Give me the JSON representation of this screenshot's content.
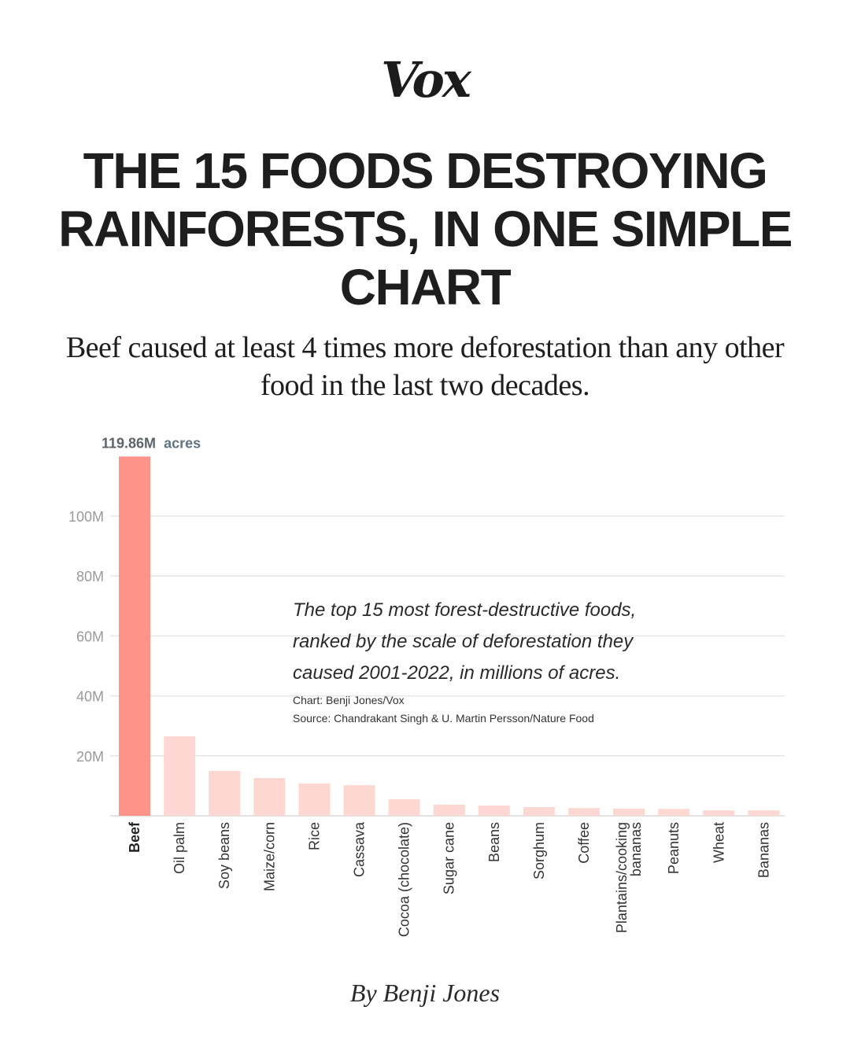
{
  "logo": "Vox",
  "title": "THE 15 FOODS DESTROYING RAINFORESTS, IN ONE SIMPLE CHART",
  "subtitle": "Beef caused at least 4 times more deforestation than any other food in the last two decades.",
  "byline": "By Benji Jones",
  "colors": {
    "highlight_bar": "#fd9389",
    "other_bar": "#fdd8d3",
    "grid": "#e6e6e6",
    "value_number": "#5d6468",
    "value_unit": "#5f7380"
  },
  "chart_data": {
    "type": "bar",
    "title": "The top 15 most forest-destructive foods, ranked by the scale of deforestation they caused 2001-2022, in millions of acres.",
    "annotation_lines": [
      "The top 15 most forest-destructive foods,",
      "ranked by the scale of deforestation they",
      "caused 2001-2022, in millions of acres."
    ],
    "credit": "Chart: Benji Jones/Vox",
    "source": "Source: Chandrakant Singh & U. Martin Persson/Nature Food",
    "xlabel": "",
    "ylabel": "",
    "ylim": [
      0,
      120
    ],
    "grid": true,
    "y_ticks": [
      20,
      40,
      60,
      80,
      100
    ],
    "y_tick_labels": [
      "20M",
      "40M",
      "60M",
      "80M",
      "100M"
    ],
    "categories": [
      "Beef",
      "Oil palm",
      "Soy beans",
      "Maize/corn",
      "Rice",
      "Cassava",
      "Cocoa (chocolate)",
      "Sugar cane",
      "Beans",
      "Sorghum",
      "Coffee",
      "Plantains/cooking bananas",
      "Peanuts",
      "Wheat",
      "Bananas"
    ],
    "category_label_lines": [
      [
        "Beef"
      ],
      [
        "Oil palm"
      ],
      [
        "Soy beans"
      ],
      [
        "Maize/corn"
      ],
      [
        "Rice"
      ],
      [
        "Cassava"
      ],
      [
        "Cocoa (chocolate)"
      ],
      [
        "Sugar cane"
      ],
      [
        "Beans"
      ],
      [
        "Sorghum"
      ],
      [
        "Coffee"
      ],
      [
        "Plantains/cooking",
        "bananas"
      ],
      [
        "Peanuts"
      ],
      [
        "Wheat"
      ],
      [
        "Bananas"
      ]
    ],
    "values": [
      119.86,
      26.5,
      15.0,
      12.6,
      10.8,
      10.2,
      5.5,
      3.7,
      3.4,
      2.9,
      2.6,
      2.4,
      2.3,
      1.8,
      1.8
    ],
    "highlight_index": 0,
    "value_label": {
      "number": "119.86M",
      "unit": "acres"
    }
  }
}
